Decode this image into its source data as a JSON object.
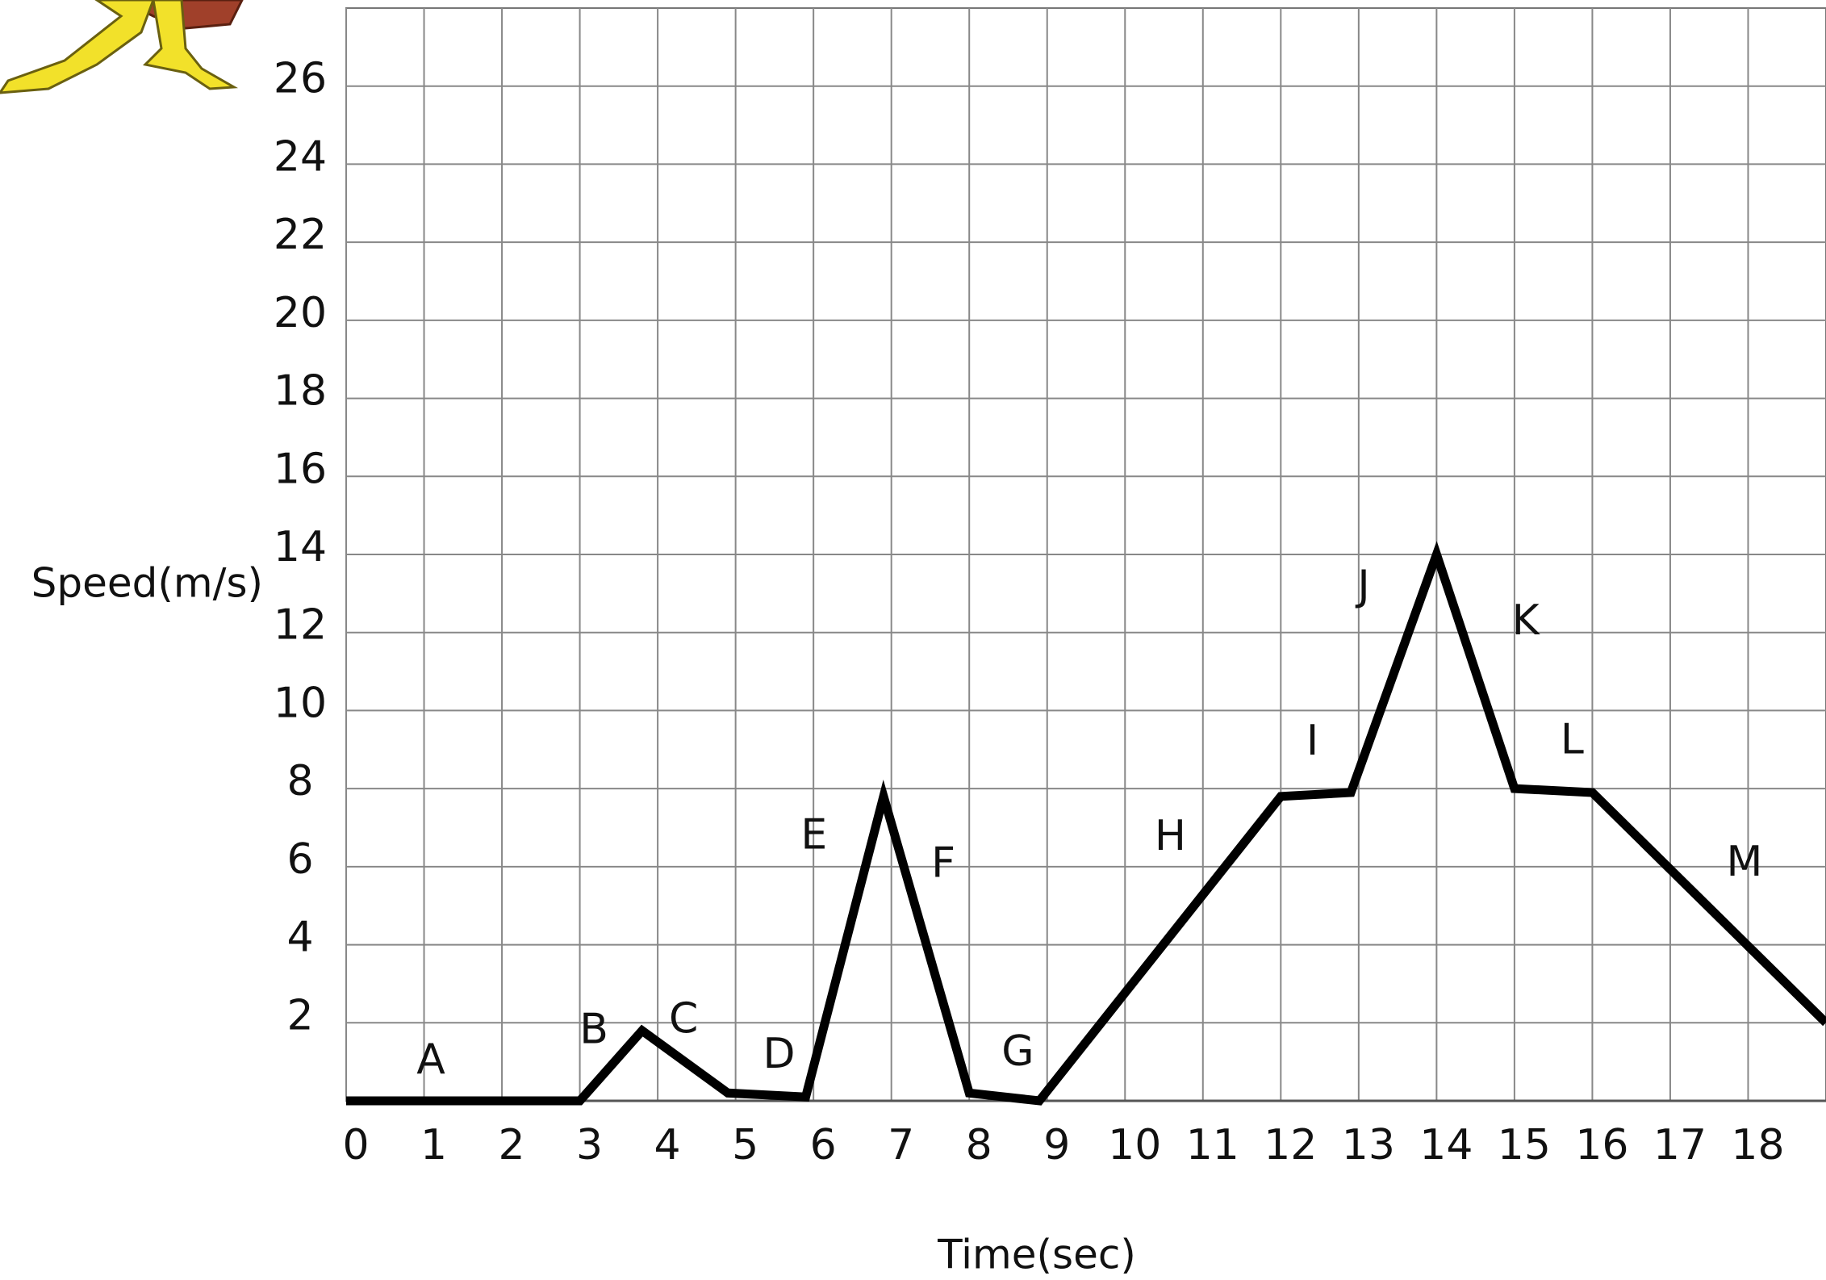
{
  "chart_data": {
    "type": "line",
    "x_label": "Time(sec)",
    "y_label": "Speed(m/s)",
    "x": [
      0,
      3,
      3.8,
      4.9,
      5.9,
      6.9,
      8,
      8.9,
      12,
      12.9,
      14,
      15,
      16,
      19
    ],
    "series": [
      {
        "color": "#000000",
        "values": [
          0,
          0,
          1.8,
          0.2,
          0.1,
          7.8,
          0.2,
          0,
          7.8,
          7.9,
          14,
          8,
          7.9,
          2
        ]
      }
    ],
    "xlim": [
      0,
      19
    ],
    "xticks": [
      0,
      1,
      2,
      3,
      4,
      5,
      6,
      7,
      8,
      9,
      10,
      11,
      12,
      13,
      14,
      15,
      16,
      17,
      18
    ],
    "ylim": [
      0,
      28
    ],
    "yticks": [
      2,
      4,
      6,
      8,
      10,
      12,
      14,
      16,
      18,
      20,
      22,
      24,
      26
    ],
    "grid": true,
    "annotations": [
      "A",
      "B",
      "C",
      "D",
      "E",
      "F",
      "G",
      "H",
      "I",
      "J",
      "K",
      "L",
      "M"
    ]
  }
}
